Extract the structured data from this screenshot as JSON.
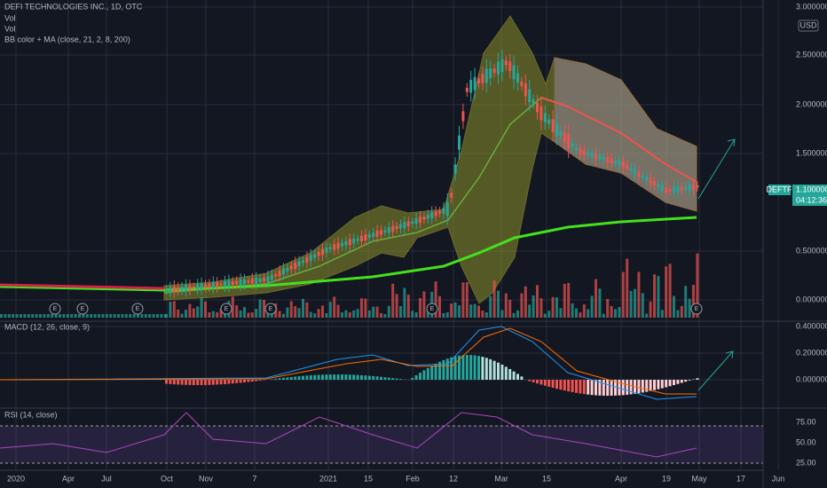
{
  "legend": {
    "symbol": "DEFI TECHNOLOGIES INC., 1D, OTC",
    "vol1": "Vol",
    "vol2": "Vol",
    "bb": "BB color + MA (close, 21, 2, 8, 200)"
  },
  "currency": "USD",
  "price_axis": [
    "3.000000",
    "2.500000",
    "2.000000",
    "1.500000",
    "0.500000",
    "0.000000"
  ],
  "price_tag": {
    "ticker": "DEFTF",
    "price": "1.100000",
    "countdown": "04:12:36"
  },
  "macd": {
    "label": "MACD (12, 26, close, 9)",
    "axis": [
      "0.400000",
      "0.200000",
      "0.000000"
    ]
  },
  "rsi": {
    "label": "RSI (14, close)",
    "axis": [
      "75.00",
      "50.00",
      "25.00"
    ]
  },
  "time_axis": [
    "2020",
    "Apr",
    "Jul",
    "Oct",
    "Nov",
    "7",
    "2021",
    "15",
    "Feb",
    "12",
    "Mar",
    "15",
    "Apr",
    "19",
    "May",
    "17",
    "Jun"
  ],
  "earnings": [
    "E",
    "E",
    "E",
    "E",
    "E",
    "E",
    "E"
  ]
}
